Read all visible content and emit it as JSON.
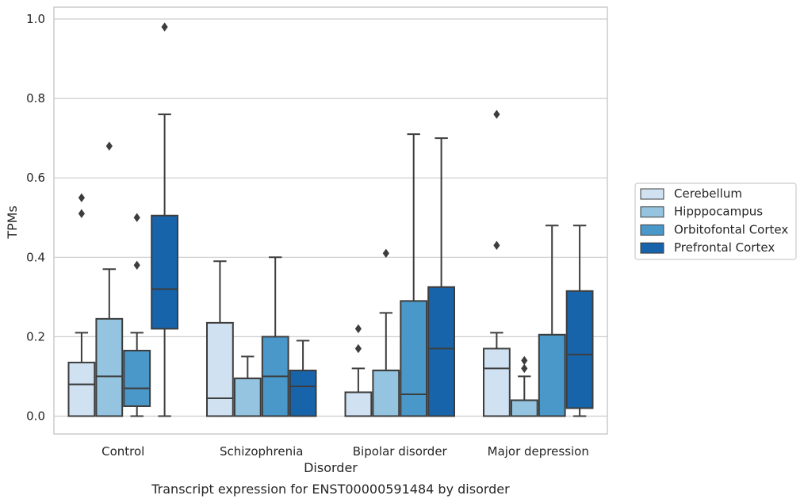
{
  "caption": "Transcript expression for ENST00000591484 by disorder",
  "chart_data": {
    "type": "box",
    "xlabel": "Disorder",
    "ylabel": "TPMs",
    "ylim": [
      -0.045,
      1.03
    ],
    "yticks": [
      "0.0",
      "0.2",
      "0.4",
      "0.6",
      "0.8",
      "1.0"
    ],
    "grid": true,
    "legend_position": "right",
    "categories": [
      "Control",
      "Schizophrenia",
      "Bipolar disorder",
      "Major depression"
    ],
    "series": [
      {
        "name": "Cerebellum",
        "color": "#d0e1f2",
        "boxes": [
          {
            "whislo": 0.0,
            "q1": 0.0,
            "med": 0.08,
            "q3": 0.135,
            "whishi": 0.21,
            "fliers": [
              0.51,
              0.55
            ]
          },
          {
            "whislo": 0.0,
            "q1": 0.0,
            "med": 0.045,
            "q3": 0.235,
            "whishi": 0.39,
            "fliers": []
          },
          {
            "whislo": 0.0,
            "q1": 0.0,
            "med": 0.0,
            "q3": 0.06,
            "whishi": 0.12,
            "fliers": [
              0.17,
              0.22
            ]
          },
          {
            "whislo": 0.0,
            "q1": 0.0,
            "med": 0.12,
            "q3": 0.17,
            "whishi": 0.21,
            "fliers": [
              0.43,
              0.76
            ]
          }
        ]
      },
      {
        "name": "Hipppocampus",
        "color": "#94c4df",
        "boxes": [
          {
            "whislo": 0.0,
            "q1": 0.0,
            "med": 0.1,
            "q3": 0.245,
            "whishi": 0.37,
            "fliers": [
              0.68
            ]
          },
          {
            "whislo": 0.0,
            "q1": 0.0,
            "med": 0.095,
            "q3": 0.095,
            "whishi": 0.15,
            "fliers": []
          },
          {
            "whislo": 0.0,
            "q1": 0.0,
            "med": 0.115,
            "q3": 0.115,
            "whishi": 0.26,
            "fliers": [
              0.41
            ]
          },
          {
            "whislo": 0.0,
            "q1": 0.0,
            "med": 0.04,
            "q3": 0.04,
            "whishi": 0.1,
            "fliers": [
              0.12,
              0.14
            ]
          }
        ]
      },
      {
        "name": "Orbitofontal Cortex",
        "color": "#4a98c9",
        "boxes": [
          {
            "whislo": 0.0,
            "q1": 0.025,
            "med": 0.07,
            "q3": 0.165,
            "whishi": 0.21,
            "fliers": [
              0.38,
              0.5
            ]
          },
          {
            "whislo": 0.0,
            "q1": 0.0,
            "med": 0.1,
            "q3": 0.2,
            "whishi": 0.4,
            "fliers": []
          },
          {
            "whislo": 0.0,
            "q1": 0.0,
            "med": 0.055,
            "q3": 0.29,
            "whishi": 0.71,
            "fliers": []
          },
          {
            "whislo": 0.0,
            "q1": 0.0,
            "med": 0.205,
            "q3": 0.205,
            "whishi": 0.48,
            "fliers": []
          }
        ]
      },
      {
        "name": "Prefrontal Cortex",
        "color": "#1764ab",
        "boxes": [
          {
            "whislo": 0.0,
            "q1": 0.22,
            "med": 0.32,
            "q3": 0.505,
            "whishi": 0.76,
            "fliers": [
              0.98
            ]
          },
          {
            "whislo": 0.0,
            "q1": 0.0,
            "med": 0.075,
            "q3": 0.115,
            "whishi": 0.19,
            "fliers": []
          },
          {
            "whislo": 0.0,
            "q1": 0.0,
            "med": 0.17,
            "q3": 0.325,
            "whishi": 0.7,
            "fliers": []
          },
          {
            "whislo": 0.0,
            "q1": 0.02,
            "med": 0.155,
            "q3": 0.315,
            "whishi": 0.48,
            "fliers": []
          }
        ]
      }
    ]
  }
}
